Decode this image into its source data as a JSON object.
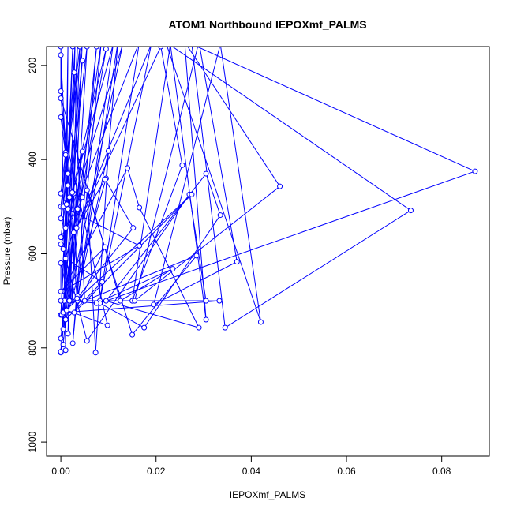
{
  "chart_data": {
    "type": "scatter",
    "title": "ATOM1 Northbound IEPOXmf_PALMS",
    "xlabel": "IEPOXmf_PALMS",
    "ylabel": "Pressure (mbar)",
    "xlim": [
      -0.003,
      0.09
    ],
    "ylim": [
      1030,
      160
    ],
    "y_reversed": true,
    "x_ticks": [
      0.0,
      0.02,
      0.04,
      0.06,
      0.08
    ],
    "x_tick_labels": [
      "0.00",
      "0.02",
      "0.04",
      "0.06",
      "0.08"
    ],
    "y_ticks": [
      200,
      400,
      600,
      800,
      1000
    ],
    "y_tick_labels": [
      "200",
      "400",
      "600",
      "800",
      "1000"
    ],
    "grid": false,
    "legend": "none",
    "colors": {
      "series": "#0000ff",
      "axis": "#000000"
    },
    "series": [
      {
        "points": [
          {
            "x": 0.0,
            "y": 160
          },
          {
            "x": 0.001,
            "y": 805
          },
          {
            "x": 0.0015,
            "y": 150
          },
          {
            "x": 0.0007,
            "y": 700
          },
          {
            "x": 0.0025,
            "y": 160
          },
          {
            "x": 0.0,
            "y": 730
          },
          {
            "x": 0.003,
            "y": 150
          },
          {
            "x": 0.0015,
            "y": 770
          },
          {
            "x": 0.004,
            "y": 160
          },
          {
            "x": 0.0,
            "y": 500
          },
          {
            "x": 0.0045,
            "y": 150
          },
          {
            "x": 0.0023,
            "y": 700
          },
          {
            "x": 0.0055,
            "y": 160
          },
          {
            "x": 0.001,
            "y": 545
          },
          {
            "x": 0.0045,
            "y": 190
          },
          {
            "x": 0.0,
            "y": 810
          },
          {
            "x": 0.0035,
            "y": 155
          },
          {
            "x": 0.002,
            "y": 700
          },
          {
            "x": 0.0075,
            "y": 160
          },
          {
            "x": 0.0025,
            "y": 790
          },
          {
            "x": 0.0085,
            "y": 150
          },
          {
            "x": 0.0002,
            "y": 730
          },
          {
            "x": 0.0095,
            "y": 165
          },
          {
            "x": 0.0015,
            "y": 505
          },
          {
            "x": 0.011,
            "y": 155
          },
          {
            "x": 0.0035,
            "y": 700
          },
          {
            "x": 0.012,
            "y": 150
          },
          {
            "x": 0.0095,
            "y": 440
          },
          {
            "x": 0.0005,
            "y": 760
          },
          {
            "x": 0.013,
            "y": 155
          },
          {
            "x": 0.0,
            "y": 580
          },
          {
            "x": 0.0165,
            "y": 150
          },
          {
            "x": 0.0082,
            "y": 700
          },
          {
            "x": 0.019,
            "y": 155
          },
          {
            "x": 0.0033,
            "y": 545
          },
          {
            "x": 0.021,
            "y": 160
          },
          {
            "x": 0.0255,
            "y": 412
          },
          {
            "x": 0.015,
            "y": 700
          },
          {
            "x": 0.023,
            "y": 155
          },
          {
            "x": 0.0305,
            "y": 740
          },
          {
            "x": 0.026,
            "y": 150
          },
          {
            "x": 0.046,
            "y": 457
          },
          {
            "x": 0.0155,
            "y": 700
          },
          {
            "x": 0.029,
            "y": 150
          },
          {
            "x": 0.037,
            "y": 617
          },
          {
            "x": 0.0195,
            "y": 708
          },
          {
            "x": 0.0335,
            "y": 155
          },
          {
            "x": 0.042,
            "y": 745
          },
          {
            "x": 0.022,
            "y": 150
          },
          {
            "x": 0.0735,
            "y": 508
          },
          {
            "x": 0.0345,
            "y": 757
          },
          {
            "x": 0.0275,
            "y": 155
          },
          {
            "x": 0.087,
            "y": 425
          },
          {
            "x": 0.0082,
            "y": 705
          },
          {
            "x": 0.0175,
            "y": 757
          },
          {
            "x": 0.0335,
            "y": 518
          },
          {
            "x": 0.0305,
            "y": 430
          },
          {
            "x": 0.0095,
            "y": 700
          },
          {
            "x": 0.029,
            "y": 757
          },
          {
            "x": 0.0165,
            "y": 502
          },
          {
            "x": 0.014,
            "y": 418
          },
          {
            "x": 0.0003,
            "y": 680
          },
          {
            "x": 0.0165,
            "y": 583
          },
          {
            "x": 0.0005,
            "y": 500
          },
          {
            "x": 0.0028,
            "y": 215
          },
          {
            "x": 0.005,
            "y": 700
          },
          {
            "x": 0.0285,
            "y": 604
          },
          {
            "x": 0.015,
            "y": 772
          },
          {
            "x": 0.0055,
            "y": 465
          },
          {
            "x": 0.0073,
            "y": 810
          },
          {
            "x": 0.01,
            "y": 382
          },
          {
            "x": 0.0035,
            "y": 690
          },
          {
            "x": 0.0027,
            "y": 472
          },
          {
            "x": 0.0005,
            "y": 590
          },
          {
            "x": 0.0055,
            "y": 785
          },
          {
            "x": 0.027,
            "y": 474
          },
          {
            "x": 0.0305,
            "y": 700
          },
          {
            "x": 0.0,
            "y": 700
          },
          {
            "x": 0.0333,
            "y": 700
          },
          {
            "x": 0.0005,
            "y": 725
          },
          {
            "x": 0.0275,
            "y": 474
          },
          {
            "x": 0.0028,
            "y": 725
          },
          {
            "x": 0.0093,
            "y": 586
          },
          {
            "x": 0.0,
            "y": 680
          },
          {
            "x": 0.0,
            "y": 620
          },
          {
            "x": 0.0018,
            "y": 700
          },
          {
            "x": 0.0075,
            "y": 705
          },
          {
            "x": 0.0235,
            "y": 632
          },
          {
            "x": 0.0125,
            "y": 700
          },
          {
            "x": 0.0,
            "y": 270
          },
          {
            "x": 0.0024,
            "y": 470
          },
          {
            "x": 0.0,
            "y": 808
          },
          {
            "x": 0.0045,
            "y": 383
          },
          {
            "x": 0.0,
            "y": 780
          },
          {
            "x": 0.0005,
            "y": 793
          },
          {
            "x": 0.0027,
            "y": 555
          },
          {
            "x": 0.0093,
            "y": 442
          },
          {
            "x": 0.0152,
            "y": 545
          },
          {
            "x": 0.0034,
            "y": 695
          },
          {
            "x": 0.0018,
            "y": 480
          },
          {
            "x": 0.0012,
            "y": 495
          },
          {
            "x": 0.0,
            "y": 472
          },
          {
            "x": 0.001,
            "y": 385
          },
          {
            "x": 0.0,
            "y": 178
          },
          {
            "x": 0.0,
            "y": 255
          },
          {
            "x": 0.0015,
            "y": 455
          },
          {
            "x": 0.0,
            "y": 565
          },
          {
            "x": 0.0035,
            "y": 505
          },
          {
            "x": 0.0045,
            "y": 480
          },
          {
            "x": 0.001,
            "y": 610
          },
          {
            "x": 0.0087,
            "y": 660
          },
          {
            "x": 0.001,
            "y": 740
          },
          {
            "x": 0.0012,
            "y": 720
          },
          {
            "x": 0.0098,
            "y": 752
          },
          {
            "x": 0.0,
            "y": 310
          },
          {
            "x": 0.0015,
            "y": 430
          },
          {
            "x": 0.0,
            "y": 525
          },
          {
            "x": 0.001,
            "y": 390
          }
        ]
      }
    ]
  }
}
